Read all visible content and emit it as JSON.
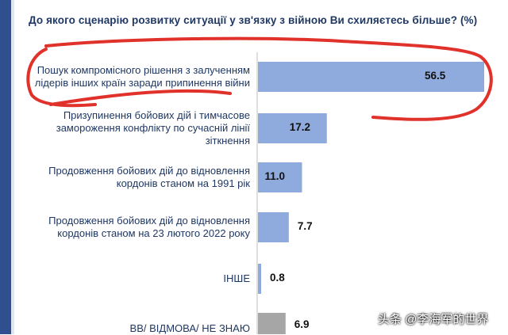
{
  "chart_data": {
    "type": "bar",
    "orientation": "horizontal",
    "title": "До якого сценарію розвитку ситуації у зв'язку з війною Ви схиляєтесь більше? (%)",
    "categories": [
      [
        "Пошук компромісного рішення з залученням",
        "лідерів інших країн заради припинення війни"
      ],
      [
        "Призупинення бойових дій і тимчасове",
        "замороження конфлікту по сучасній лінії",
        "зіткнення"
      ],
      [
        "Продовження бойових дій до відновлення",
        "кордонів станом на 1991 рік"
      ],
      [
        "Продовження бойових дій до відновлення",
        "кордонів станом на 23 лютого 2022 року"
      ],
      [
        "ІНШЕ"
      ],
      [
        "ВВ/ ВІДМОВА/ НЕ ЗНАЮ"
      ]
    ],
    "values": [
      56.5,
      17.2,
      11.0,
      7.7,
      0.8,
      6.9
    ],
    "value_labels": [
      "56.5",
      "17.2",
      "11.0",
      "7.7",
      "0.8",
      "6.9"
    ],
    "xlim": [
      0,
      56.5
    ],
    "grid": false,
    "colors": {
      "bar": "#8faadc",
      "bar_last": "#a6a6a6",
      "title": "#1f3864",
      "annotation": "#e0312b"
    }
  },
  "watermark": "头条 @李海军的世界"
}
